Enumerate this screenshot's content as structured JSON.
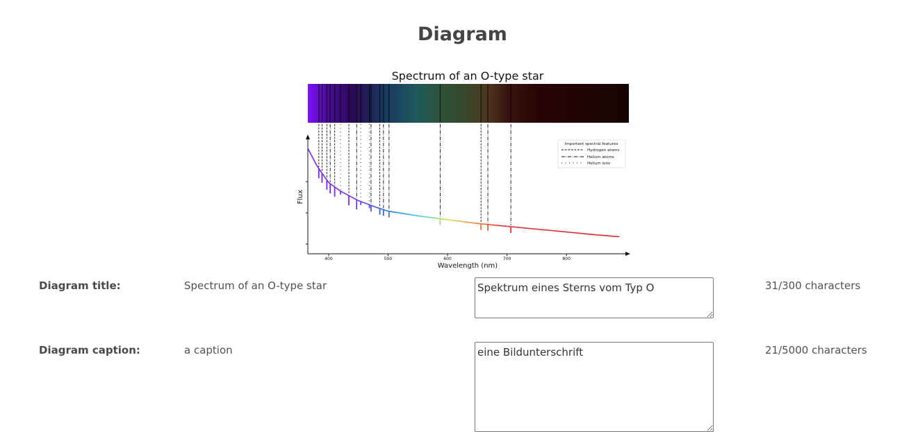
{
  "page": {
    "heading": "Diagram"
  },
  "figure": {
    "title": "Spectrum of an O-type star",
    "xlabel": "Wavelength (nm)",
    "ylabel": "Flux",
    "x_ticks": [
      "400",
      "500",
      "600",
      "700",
      "800"
    ],
    "legend": {
      "title": "Important spectral features",
      "entries": [
        {
          "label": "Hydrogen atoms",
          "style": "dashed"
        },
        {
          "label": "Helium atoms",
          "style": "dashdot"
        },
        {
          "label": "Helium ions",
          "style": "dotted"
        }
      ]
    },
    "colors": {
      "spectrum_violet": "#7a1fff",
      "spectrum_red": "#ff2020",
      "band_dark": "#1a0000"
    }
  },
  "chart_data": {
    "type": "line",
    "title": "Spectrum of an O-type star",
    "xlabel": "Wavelength (nm)",
    "ylabel": "Flux",
    "xlim": [
      365,
      905
    ],
    "x_ticks": [
      400,
      500,
      600,
      700,
      800
    ],
    "series": [
      {
        "x": [
          365,
          380,
          400,
          420,
          450,
          480,
          500,
          550,
          600,
          650,
          700,
          750,
          800,
          850,
          890
        ],
        "y": [
          1.0,
          0.82,
          0.64,
          0.55,
          0.45,
          0.38,
          0.34,
          0.29,
          0.25,
          0.21,
          0.18,
          0.15,
          0.12,
          0.09,
          0.07
        ]
      }
    ],
    "absorption_lines": {
      "hydrogen": [
        383.5,
        388.9,
        397.0,
        410.2,
        434.0,
        486.1,
        656.3
      ],
      "helium_atoms": [
        402.6,
        447.1,
        471.3,
        492.2,
        501.6,
        587.6,
        667.8,
        706.5
      ],
      "helium_ions": [
        420.0,
        454.1,
        468.6
      ]
    },
    "legend": [
      "Hydrogen atoms",
      "Helium atoms",
      "Helium ions"
    ],
    "legend_position": "top-right",
    "grid": false
  },
  "rows": [
    {
      "label": "Diagram title:",
      "source": "Spectrum of an O-type star",
      "translation": "Spektrum eines Sterns vom Typ O",
      "count": "31/300 characters"
    },
    {
      "label": "Diagram caption:",
      "source": "a caption",
      "translation": "eine Bildunterschrift",
      "count": "21/5000 characters"
    }
  ]
}
